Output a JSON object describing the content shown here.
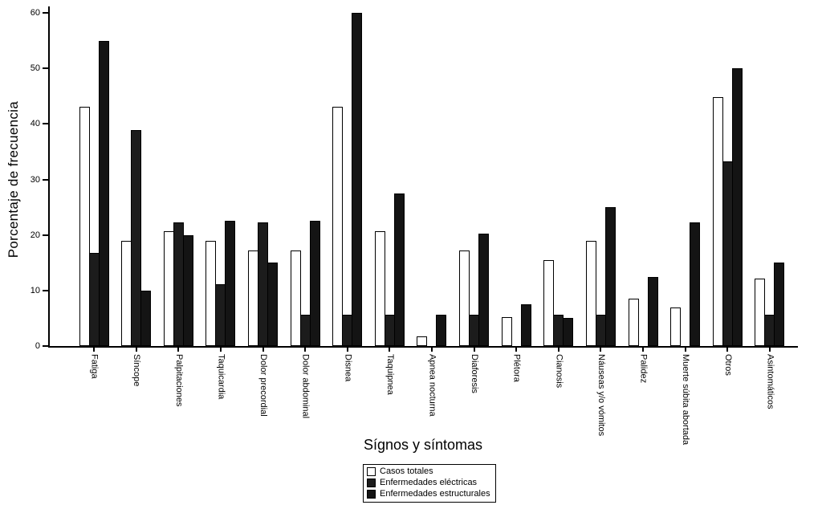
{
  "chart_data": {
    "type": "bar",
    "title": "",
    "xlabel": "Sígnos y síntomas",
    "ylabel": "Porcentaje de frecuencia",
    "ylim": [
      0,
      60
    ],
    "yticks": [
      0,
      10,
      20,
      30,
      40,
      50,
      60
    ],
    "grid": false,
    "legend_position": "bottom-center",
    "categories": [
      "Fatiga",
      "Síncope",
      "Palpitaciones",
      "Taquicardia",
      "Dolor precordial",
      "Dolor abdominal",
      "Disnea",
      "Taquipnea",
      "Apnea nocturna",
      "Diaforesis",
      "Plétora",
      "Cianosis",
      "Náuseas y/o vómitos",
      "Palidez",
      "Muerte súbita abortada",
      "Otros",
      "Asintomáticos"
    ],
    "series": [
      {
        "name": "Casos totales",
        "color": "#ffffff",
        "values": [
          43.1,
          19.0,
          20.7,
          19.0,
          17.2,
          17.2,
          43.1,
          20.7,
          1.7,
          17.2,
          5.2,
          15.5,
          19.0,
          8.6,
          6.9,
          44.8,
          12.1
        ]
      },
      {
        "name": "Enfermedades eléctricas",
        "color": "#1c1c1c",
        "values": [
          16.7,
          38.9,
          22.2,
          11.1,
          22.2,
          5.6,
          5.6,
          5.6,
          0,
          5.6,
          0,
          5.6,
          5.6,
          0,
          0,
          33.3,
          5.6
        ]
      },
      {
        "name": "Enfermedades estructurales",
        "color": "#141414",
        "values": [
          55,
          10,
          20,
          22.5,
          15,
          22.5,
          60,
          27.5,
          5.6,
          20.2,
          7.5,
          5,
          25,
          12.5,
          22.2,
          50,
          15
        ]
      }
    ]
  }
}
